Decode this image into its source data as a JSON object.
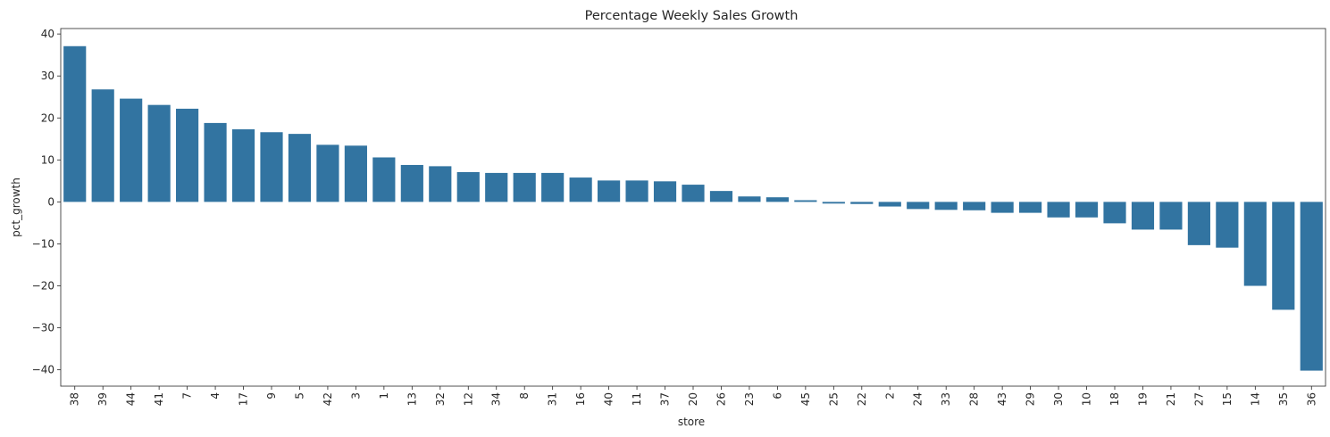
{
  "chart_data": {
    "type": "bar",
    "title": "Percentage Weekly Sales Growth",
    "xlabel": "store",
    "ylabel": "pct_growth",
    "ylim": [
      -43.9,
      41.3
    ],
    "yticks": [
      40,
      30,
      20,
      10,
      0,
      -10,
      -20,
      -30,
      -40
    ],
    "ytick_labels": [
      "40",
      "30",
      "20",
      "10",
      "0",
      "−10",
      "−20",
      "−30",
      "−40"
    ],
    "bar_color": "#3274a1",
    "grid": false,
    "categories": [
      "38",
      "39",
      "44",
      "41",
      "7",
      "4",
      "17",
      "9",
      "5",
      "42",
      "3",
      "1",
      "13",
      "32",
      "12",
      "34",
      "8",
      "31",
      "16",
      "40",
      "11",
      "37",
      "20",
      "26",
      "23",
      "6",
      "45",
      "25",
      "22",
      "2",
      "24",
      "33",
      "28",
      "43",
      "29",
      "30",
      "10",
      "18",
      "19",
      "21",
      "27",
      "15",
      "14",
      "35",
      "36"
    ],
    "values": [
      37.1,
      26.8,
      24.6,
      23.1,
      22.2,
      18.8,
      17.3,
      16.6,
      16.2,
      13.6,
      13.4,
      10.6,
      8.8,
      8.5,
      7.1,
      6.9,
      6.9,
      6.9,
      5.8,
      5.1,
      5.1,
      4.9,
      4.1,
      2.6,
      1.3,
      1.1,
      0.4,
      -0.4,
      -0.5,
      -1.1,
      -1.7,
      -1.9,
      -2.0,
      -2.6,
      -2.6,
      -3.7,
      -3.7,
      -5.1,
      -6.6,
      -6.6,
      -10.3,
      -10.9,
      -20.0,
      -25.7,
      -40.2
    ]
  }
}
